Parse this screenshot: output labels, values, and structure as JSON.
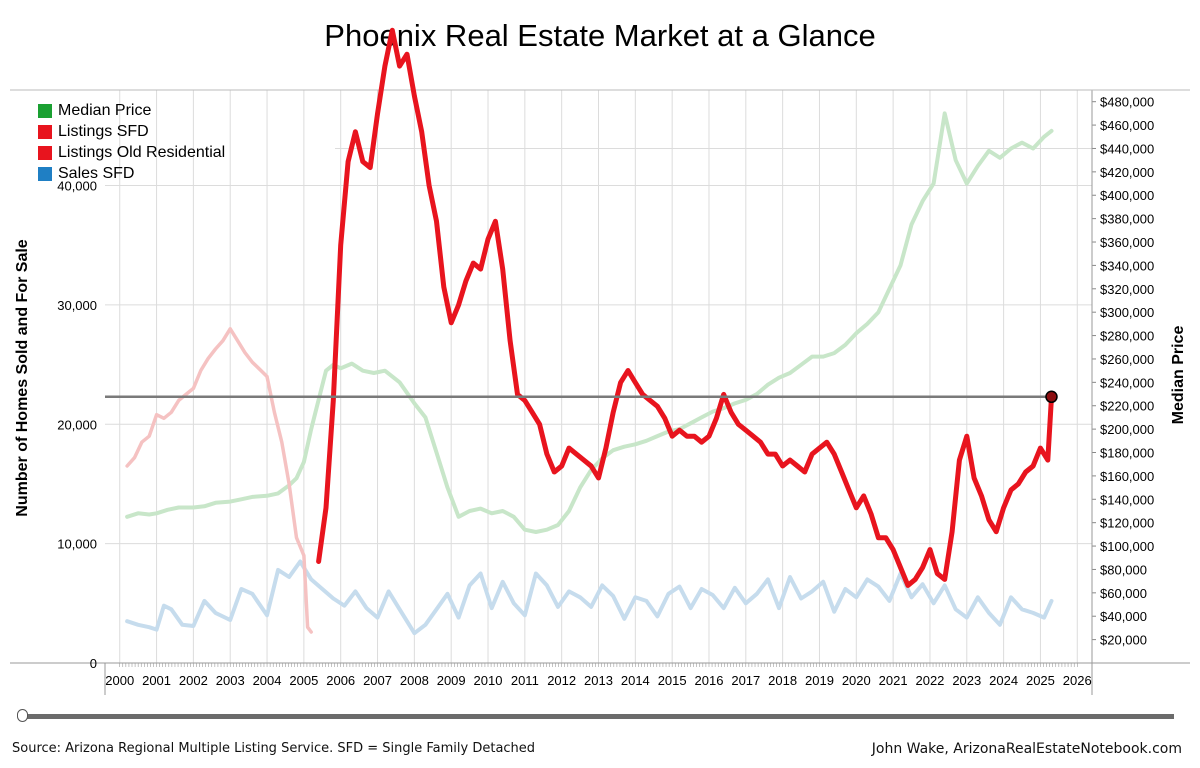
{
  "title": "Phoenix Real Estate Market at a Glance",
  "source": "Source: Arizona Regional Multiple Listing Service. SFD = Single Family Detached",
  "credit": "John Wake, ArizonaRealEstateNotebook.com",
  "legend": [
    {
      "label": "Median Price",
      "color": "#1aa032"
    },
    {
      "label": "Listings SFD",
      "color": "#e8141e"
    },
    {
      "label": "Listings Old Residential",
      "color": "#e8141e"
    },
    {
      "label": "Sales SFD",
      "color": "#1f7fc4"
    }
  ],
  "chart_data": {
    "type": "line",
    "ylabel_left": "Number of Homes Sold and For Sale",
    "ylabel_right": "Median Price",
    "x_ticks": [
      "2000",
      "2001",
      "2002",
      "2003",
      "2004",
      "2005",
      "2006",
      "2007",
      "2008",
      "2009",
      "2010",
      "2011",
      "2012",
      "2013",
      "2014",
      "2015",
      "2016",
      "2017",
      "2018",
      "2019",
      "2020",
      "2021",
      "2022",
      "2023",
      "2024",
      "2025",
      "2026"
    ],
    "y_left_ticks": [
      "0",
      "10,000",
      "20,000",
      "30,000",
      "40,000"
    ],
    "y_right_ticks": [
      "$20,000",
      "$40,000",
      "$60,000",
      "$80,000",
      "$100,000",
      "$120,000",
      "$140,000",
      "$160,000",
      "$180,000",
      "$200,000",
      "$220,000",
      "$240,000",
      "$260,000",
      "$280,000",
      "$300,000",
      "$320,000",
      "$340,000",
      "$360,000",
      "$380,000",
      "$400,000",
      "$420,000",
      "$440,000",
      "$460,000",
      "$480,000"
    ],
    "xlim": [
      1999.6,
      2026.4
    ],
    "ylim_left": [
      0,
      48000
    ],
    "ylim_right": [
      0,
      490000
    ],
    "reference_line_left": 22300,
    "grid": true,
    "series": [
      {
        "name": "Median Price",
        "axis": "right",
        "color": "#c8e6c9",
        "x": [
          2000.2,
          2000.5,
          2000.8,
          2001.0,
          2001.3,
          2001.6,
          2002.0,
          2002.3,
          2002.6,
          2003.0,
          2003.3,
          2003.6,
          2004.0,
          2004.3,
          2004.6,
          2004.8,
          2005.0,
          2005.2,
          2005.4,
          2005.6,
          2005.8,
          2006.0,
          2006.3,
          2006.6,
          2006.9,
          2007.2,
          2007.6,
          2008.0,
          2008.3,
          2008.6,
          2008.9,
          2009.2,
          2009.5,
          2009.8,
          2010.1,
          2010.4,
          2010.7,
          2011.0,
          2011.3,
          2011.6,
          2011.9,
          2012.2,
          2012.5,
          2012.8,
          2013.1,
          2013.4,
          2013.7,
          2014.0,
          2014.3,
          2014.6,
          2014.9,
          2015.2,
          2015.5,
          2015.8,
          2016.1,
          2016.4,
          2016.7,
          2017.0,
          2017.3,
          2017.6,
          2017.9,
          2018.2,
          2018.5,
          2018.8,
          2019.1,
          2019.4,
          2019.7,
          2020.0,
          2020.3,
          2020.6,
          2020.9,
          2021.2,
          2021.5,
          2021.8,
          2022.1,
          2022.4,
          2022.7,
          2023.0,
          2023.3,
          2023.6,
          2023.9,
          2024.2,
          2024.5,
          2024.8,
          2025.1,
          2025.3
        ],
        "y": [
          125000,
          128000,
          127000,
          128000,
          131000,
          133000,
          133000,
          134000,
          137000,
          138000,
          140000,
          142000,
          143000,
          145000,
          152000,
          158000,
          172000,
          200000,
          225000,
          250000,
          255000,
          252000,
          256000,
          250000,
          248000,
          250000,
          240000,
          222000,
          210000,
          180000,
          150000,
          125000,
          130000,
          132000,
          128000,
          130000,
          125000,
          114000,
          112000,
          114000,
          118000,
          130000,
          150000,
          165000,
          175000,
          182000,
          185000,
          187000,
          190000,
          194000,
          198000,
          200000,
          205000,
          210000,
          215000,
          218000,
          222000,
          225000,
          230000,
          238000,
          244000,
          248000,
          255000,
          262000,
          262000,
          265000,
          272000,
          282000,
          290000,
          300000,
          320000,
          340000,
          375000,
          395000,
          410000,
          470000,
          430000,
          410000,
          425000,
          438000,
          432000,
          440000,
          445000,
          440000,
          450000,
          455000
        ]
      },
      {
        "name": "Listings Old Residential",
        "axis": "left",
        "color": "#f5c2c2",
        "x": [
          2000.2,
          2000.4,
          2000.6,
          2000.8,
          2001.0,
          2001.2,
          2001.4,
          2001.6,
          2001.8,
          2002.0,
          2002.2,
          2002.4,
          2002.6,
          2002.8,
          2003.0,
          2003.2,
          2003.4,
          2003.6,
          2003.8,
          2004.0,
          2004.2,
          2004.4,
          2004.6,
          2004.8,
          2005.0,
          2005.1,
          2005.2
        ],
        "y": [
          16500,
          17200,
          18500,
          19000,
          20800,
          20500,
          21000,
          22000,
          22500,
          23000,
          24500,
          25500,
          26300,
          27000,
          28000,
          27000,
          26000,
          25200,
          24600,
          24000,
          21000,
          18500,
          15000,
          10500,
          9000,
          3000,
          2600
        ]
      },
      {
        "name": "Listings SFD",
        "axis": "left",
        "color": "#e8141e",
        "x": [
          2005.4,
          2005.6,
          2005.8,
          2006.0,
          2006.2,
          2006.4,
          2006.6,
          2006.8,
          2007.0,
          2007.2,
          2007.4,
          2007.6,
          2007.8,
          2008.0,
          2008.2,
          2008.4,
          2008.6,
          2008.8,
          2009.0,
          2009.2,
          2009.4,
          2009.6,
          2009.8,
          2010.0,
          2010.2,
          2010.4,
          2010.6,
          2010.8,
          2011.0,
          2011.2,
          2011.4,
          2011.6,
          2011.8,
          2012.0,
          2012.2,
          2012.4,
          2012.6,
          2012.8,
          2013.0,
          2013.2,
          2013.4,
          2013.6,
          2013.8,
          2014.0,
          2014.2,
          2014.4,
          2014.6,
          2014.8,
          2015.0,
          2015.2,
          2015.4,
          2015.6,
          2015.8,
          2016.0,
          2016.2,
          2016.4,
          2016.6,
          2016.8,
          2017.0,
          2017.2,
          2017.4,
          2017.6,
          2017.8,
          2018.0,
          2018.2,
          2018.4,
          2018.6,
          2018.8,
          2019.0,
          2019.2,
          2019.4,
          2019.6,
          2019.8,
          2020.0,
          2020.2,
          2020.4,
          2020.6,
          2020.8,
          2021.0,
          2021.2,
          2021.4,
          2021.6,
          2021.8,
          2022.0,
          2022.2,
          2022.4,
          2022.6,
          2022.8,
          2023.0,
          2023.2,
          2023.4,
          2023.6,
          2023.8,
          2024.0,
          2024.2,
          2024.4,
          2024.6,
          2024.8,
          2025.0,
          2025.2,
          2025.3
        ],
        "y": [
          8500,
          13000,
          22000,
          35000,
          42000,
          44500,
          42000,
          41500,
          46000,
          50000,
          53000,
          50000,
          51000,
          47500,
          44500,
          40000,
          37000,
          31500,
          28500,
          30000,
          32000,
          33500,
          33000,
          35500,
          37000,
          33000,
          27000,
          22500,
          22000,
          21000,
          20000,
          17500,
          16000,
          16500,
          18000,
          17500,
          17000,
          16500,
          15500,
          18000,
          21000,
          23500,
          24500,
          23500,
          22500,
          22000,
          21500,
          20500,
          19000,
          19500,
          19000,
          19000,
          18500,
          19000,
          20500,
          22500,
          21000,
          20000,
          19500,
          19000,
          18500,
          17500,
          17500,
          16500,
          17000,
          16500,
          16000,
          17500,
          18000,
          18500,
          17500,
          16000,
          14500,
          13000,
          14000,
          12500,
          10500,
          10500,
          9500,
          8000,
          6500,
          7000,
          8000,
          9500,
          7500,
          7000,
          11000,
          17000,
          19000,
          15500,
          14000,
          12000,
          11000,
          13000,
          14500,
          15000,
          16000,
          16500,
          18000,
          17000,
          22300
        ]
      },
      {
        "name": "Sales SFD",
        "axis": "left",
        "color": "#c6dced",
        "x": [
          2000.2,
          2000.5,
          2000.8,
          2001.0,
          2001.2,
          2001.4,
          2001.7,
          2002.0,
          2002.3,
          2002.6,
          2003.0,
          2003.3,
          2003.6,
          2004.0,
          2004.3,
          2004.6,
          2004.9,
          2005.2,
          2005.5,
          2005.8,
          2006.1,
          2006.4,
          2006.7,
          2007.0,
          2007.3,
          2007.6,
          2008.0,
          2008.3,
          2008.6,
          2008.9,
          2009.2,
          2009.5,
          2009.8,
          2010.1,
          2010.4,
          2010.7,
          2011.0,
          2011.3,
          2011.6,
          2011.9,
          2012.2,
          2012.5,
          2012.8,
          2013.1,
          2013.4,
          2013.7,
          2014.0,
          2014.3,
          2014.6,
          2014.9,
          2015.2,
          2015.5,
          2015.8,
          2016.1,
          2016.4,
          2016.7,
          2017.0,
          2017.3,
          2017.6,
          2017.9,
          2018.2,
          2018.5,
          2018.8,
          2019.1,
          2019.4,
          2019.7,
          2020.0,
          2020.3,
          2020.6,
          2020.9,
          2021.2,
          2021.5,
          2021.8,
          2022.1,
          2022.4,
          2022.7,
          2023.0,
          2023.3,
          2023.6,
          2023.9,
          2024.2,
          2024.5,
          2024.8,
          2025.1,
          2025.3
        ],
        "y": [
          3500,
          3200,
          3000,
          2800,
          4800,
          4500,
          3200,
          3100,
          5200,
          4200,
          3600,
          6200,
          5800,
          4000,
          7800,
          7200,
          8500,
          7000,
          6200,
          5400,
          4800,
          6000,
          4600,
          3800,
          6000,
          4500,
          2500,
          3200,
          4500,
          5800,
          3800,
          6500,
          7500,
          4600,
          6800,
          5000,
          4000,
          7500,
          6500,
          4700,
          6000,
          5500,
          4700,
          6500,
          5600,
          3700,
          5500,
          5200,
          3900,
          5800,
          6400,
          4600,
          6200,
          5700,
          4600,
          6300,
          5000,
          5800,
          7000,
          4600,
          7200,
          5400,
          6000,
          6800,
          4300,
          6200,
          5500,
          7000,
          6400,
          5200,
          7500,
          5500,
          6600,
          5000,
          6500,
          4500,
          3800,
          5500,
          4200,
          3200,
          5500,
          4500,
          4200,
          3800,
          5200
        ]
      }
    ]
  }
}
